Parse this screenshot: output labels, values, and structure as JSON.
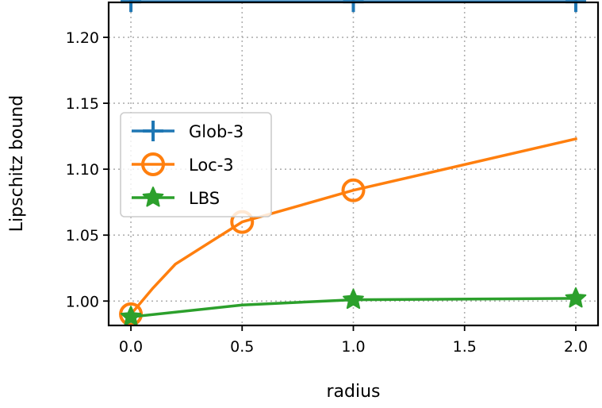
{
  "chart_data": {
    "type": "line",
    "xlabel": "radius",
    "ylabel": "Lipschitz bound",
    "xlim": [
      -0.1,
      2.1
    ],
    "ylim": [
      0.9815,
      1.2265
    ],
    "xticks": [
      0.0,
      0.5,
      1.0,
      1.5,
      2.0
    ],
    "xtick_labels": [
      "0.0",
      "0.5",
      "1.0",
      "1.5",
      "2.0"
    ],
    "yticks": [
      1.0,
      1.05,
      1.1,
      1.15,
      1.2
    ],
    "ytick_labels": [
      "1.00",
      "1.05",
      "1.10",
      "1.15",
      "1.20"
    ],
    "grid": true,
    "legend_position": "center-left",
    "series": [
      {
        "name": "Glob-3",
        "color": "#1f77b4",
        "marker": "plus",
        "x": [
          0.0,
          1.0,
          2.0
        ],
        "y": [
          1.227,
          1.227,
          1.227
        ],
        "marker_x": [
          0.0,
          1.0,
          2.0
        ],
        "marker_y": [
          1.227,
          1.227,
          1.227
        ]
      },
      {
        "name": "Loc-3",
        "color": "#ff7f0e",
        "marker": "circle",
        "x": [
          0.0,
          0.1,
          0.2,
          0.5,
          1.0,
          2.0
        ],
        "y": [
          0.99,
          1.01,
          1.028,
          1.06,
          1.084,
          1.123
        ],
        "marker_x": [
          0.0,
          0.5,
          1.0
        ],
        "marker_y": [
          0.99,
          1.06,
          1.084
        ]
      },
      {
        "name": "LBS",
        "color": "#2ca02c",
        "marker": "star",
        "x": [
          0.0,
          0.5,
          1.0,
          2.0
        ],
        "y": [
          0.988,
          0.997,
          1.001,
          1.002
        ],
        "marker_x": [
          0.0,
          1.0,
          2.0
        ],
        "marker_y": [
          0.988,
          1.001,
          1.002
        ]
      }
    ]
  }
}
